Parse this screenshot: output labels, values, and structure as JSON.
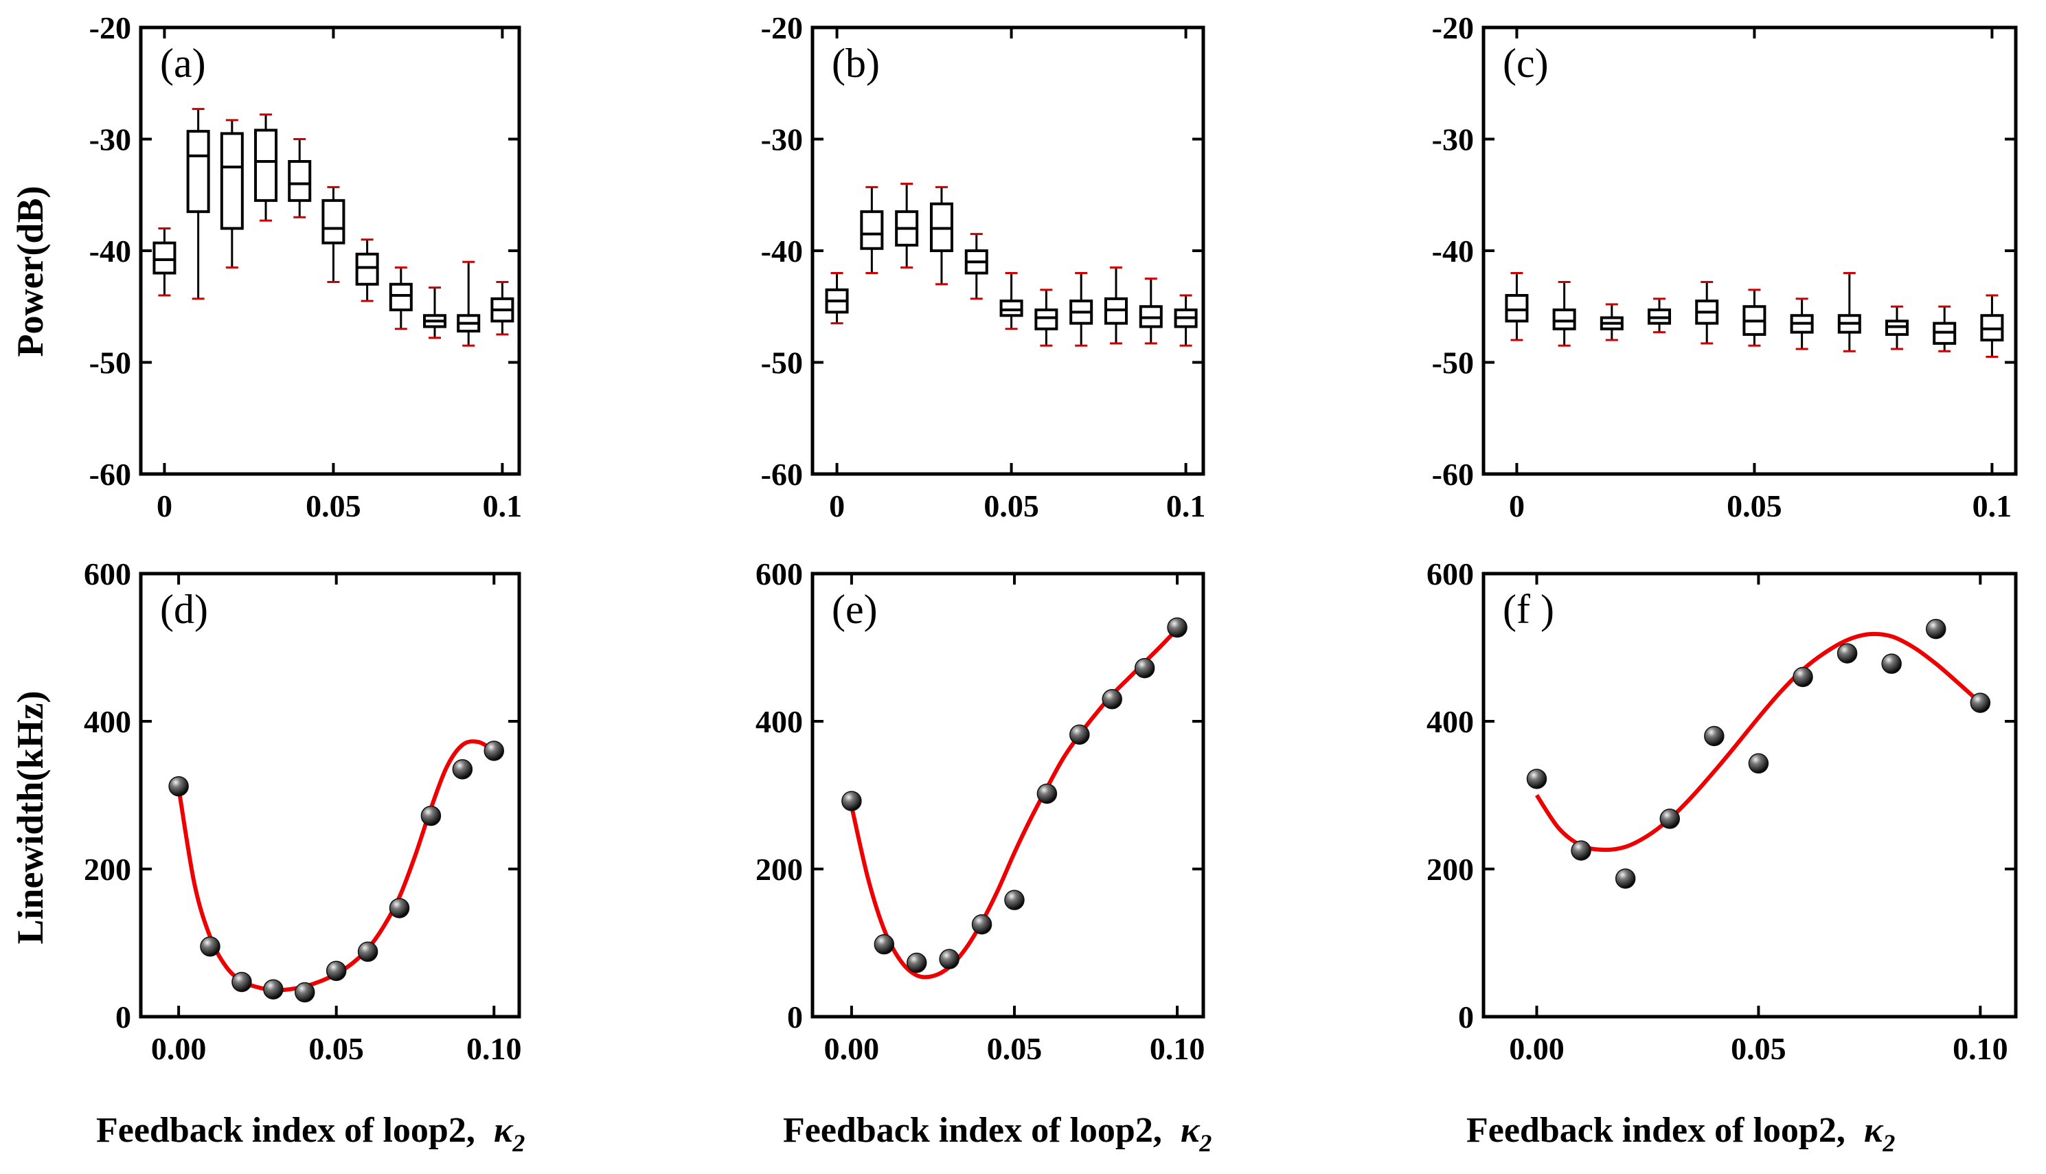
{
  "figure": {
    "y_label_top": "Power(dB)",
    "y_label_bottom": "Linewidth(kHz)",
    "x_label_text": "Feedback index of loop2,",
    "x_label_symbol": "κ",
    "x_label_sub": "2",
    "colors": {
      "axis": "#000000",
      "whisker_cap": "#cc0000",
      "fit_curve": "#ee0000",
      "marker": "#111111"
    }
  },
  "chart_data": [
    {
      "panel": "(a)",
      "type": "box",
      "xlim": [
        -0.007,
        0.105
      ],
      "ylim": [
        -60,
        -20
      ],
      "yticks": [
        "-20",
        "-30",
        "-40",
        "-50",
        "-60"
      ],
      "ytick_values": [
        -20,
        -30,
        -40,
        -50,
        -60
      ],
      "xticks": [
        "0",
        "0.05",
        "0.1"
      ],
      "xtick_values": [
        0,
        0.05,
        0.1
      ],
      "boxes": [
        {
          "x": 0.0,
          "min": -44.0,
          "q1": -42.0,
          "median": -40.8,
          "q3": -39.3,
          "max": -38.0
        },
        {
          "x": 0.01,
          "min": -44.3,
          "q1": -36.5,
          "median": -31.5,
          "q3": -29.3,
          "max": -27.3
        },
        {
          "x": 0.02,
          "min": -41.5,
          "q1": -38.0,
          "median": -32.5,
          "q3": -29.5,
          "max": -28.3
        },
        {
          "x": 0.03,
          "min": -37.3,
          "q1": -35.5,
          "median": -32.0,
          "q3": -29.2,
          "max": -27.8
        },
        {
          "x": 0.04,
          "min": -37.0,
          "q1": -35.5,
          "median": -34.0,
          "q3": -32.0,
          "max": -30.0
        },
        {
          "x": 0.05,
          "min": -42.8,
          "q1": -39.3,
          "median": -38.0,
          "q3": -35.5,
          "max": -34.3
        },
        {
          "x": 0.06,
          "min": -44.5,
          "q1": -43.0,
          "median": -41.5,
          "q3": -40.3,
          "max": -39.0
        },
        {
          "x": 0.07,
          "min": -47.0,
          "q1": -45.3,
          "median": -44.0,
          "q3": -43.0,
          "max": -41.5
        },
        {
          "x": 0.08,
          "min": -47.8,
          "q1": -46.8,
          "median": -46.3,
          "q3": -45.8,
          "max": -43.3
        },
        {
          "x": 0.09,
          "min": -48.5,
          "q1": -47.2,
          "median": -46.5,
          "q3": -45.8,
          "max": -41.0
        },
        {
          "x": 0.1,
          "min": -47.5,
          "q1": -46.3,
          "median": -45.3,
          "q3": -44.3,
          "max": -42.8
        }
      ]
    },
    {
      "panel": "(b)",
      "type": "box",
      "xlim": [
        -0.007,
        0.105
      ],
      "ylim": [
        -60,
        -20
      ],
      "yticks": [
        "-20",
        "-30",
        "-40",
        "-50",
        "-60"
      ],
      "ytick_values": [
        -20,
        -30,
        -40,
        -50,
        -60
      ],
      "xticks": [
        "0",
        "0.05",
        "0.1"
      ],
      "xtick_values": [
        0,
        0.05,
        0.1
      ],
      "boxes": [
        {
          "x": 0.0,
          "min": -46.5,
          "q1": -45.5,
          "median": -44.5,
          "q3": -43.5,
          "max": -42.0
        },
        {
          "x": 0.01,
          "min": -42.0,
          "q1": -39.8,
          "median": -38.5,
          "q3": -36.5,
          "max": -34.3
        },
        {
          "x": 0.02,
          "min": -41.5,
          "q1": -39.5,
          "median": -38.0,
          "q3": -36.5,
          "max": -34.0
        },
        {
          "x": 0.03,
          "min": -43.0,
          "q1": -40.0,
          "median": -38.0,
          "q3": -35.8,
          "max": -34.3
        },
        {
          "x": 0.04,
          "min": -44.3,
          "q1": -42.0,
          "median": -41.0,
          "q3": -40.0,
          "max": -38.5
        },
        {
          "x": 0.05,
          "min": -47.0,
          "q1": -45.8,
          "median": -45.3,
          "q3": -44.5,
          "max": -42.0
        },
        {
          "x": 0.06,
          "min": -48.5,
          "q1": -47.0,
          "median": -46.0,
          "q3": -45.3,
          "max": -43.5
        },
        {
          "x": 0.07,
          "min": -48.5,
          "q1": -46.5,
          "median": -45.5,
          "q3": -44.5,
          "max": -42.0
        },
        {
          "x": 0.08,
          "min": -48.3,
          "q1": -46.5,
          "median": -45.3,
          "q3": -44.3,
          "max": -41.5
        },
        {
          "x": 0.09,
          "min": -48.3,
          "q1": -46.8,
          "median": -46.0,
          "q3": -45.0,
          "max": -42.5
        },
        {
          "x": 0.1,
          "min": -48.5,
          "q1": -46.8,
          "median": -46.0,
          "q3": -45.3,
          "max": -44.0
        }
      ]
    },
    {
      "panel": "(c)",
      "type": "box",
      "xlim": [
        -0.007,
        0.105
      ],
      "ylim": [
        -60,
        -20
      ],
      "yticks": [
        "-20",
        "-30",
        "-40",
        "-50",
        "-60"
      ],
      "ytick_values": [
        -20,
        -30,
        -40,
        -50,
        -60
      ],
      "xticks": [
        "0",
        "0.05",
        "0.1"
      ],
      "xtick_values": [
        0,
        0.05,
        0.1
      ],
      "boxes": [
        {
          "x": 0.0,
          "min": -48.0,
          "q1": -46.3,
          "median": -45.3,
          "q3": -44.0,
          "max": -42.0
        },
        {
          "x": 0.01,
          "min": -48.5,
          "q1": -47.0,
          "median": -46.3,
          "q3": -45.3,
          "max": -42.8
        },
        {
          "x": 0.02,
          "min": -48.0,
          "q1": -47.0,
          "median": -46.5,
          "q3": -46.0,
          "max": -44.8
        },
        {
          "x": 0.03,
          "min": -47.3,
          "q1": -46.5,
          "median": -46.0,
          "q3": -45.3,
          "max": -44.3
        },
        {
          "x": 0.04,
          "min": -48.3,
          "q1": -46.5,
          "median": -45.5,
          "q3": -44.5,
          "max": -42.8
        },
        {
          "x": 0.05,
          "min": -48.5,
          "q1": -47.5,
          "median": -46.3,
          "q3": -45.0,
          "max": -43.5
        },
        {
          "x": 0.06,
          "min": -48.8,
          "q1": -47.3,
          "median": -46.5,
          "q3": -45.8,
          "max": -44.3
        },
        {
          "x": 0.07,
          "min": -49.0,
          "q1": -47.3,
          "median": -46.5,
          "q3": -45.8,
          "max": -42.0
        },
        {
          "x": 0.08,
          "min": -48.8,
          "q1": -47.5,
          "median": -46.8,
          "q3": -46.3,
          "max": -45.0
        },
        {
          "x": 0.09,
          "min": -49.0,
          "q1": -48.3,
          "median": -47.3,
          "q3": -46.5,
          "max": -45.0
        },
        {
          "x": 0.1,
          "min": -49.5,
          "q1": -48.0,
          "median": -47.0,
          "q3": -45.8,
          "max": -44.0
        }
      ]
    },
    {
      "panel": "(d)",
      "type": "scatter",
      "xlim": [
        -0.012,
        0.108
      ],
      "ylim": [
        0,
        600
      ],
      "yticks": [
        "0",
        "200",
        "400",
        "600"
      ],
      "ytick_values": [
        0,
        200,
        400,
        600
      ],
      "xticks": [
        "0.00",
        "0.05",
        "0.10"
      ],
      "xtick_values": [
        0,
        0.05,
        0.1
      ],
      "x": [
        0.0,
        0.01,
        0.02,
        0.03,
        0.04,
        0.05,
        0.06,
        0.07,
        0.08,
        0.09,
        0.1
      ],
      "y": [
        312,
        95,
        47,
        37,
        33,
        62,
        88,
        147,
        272,
        335,
        360
      ],
      "fit": {
        "x": [
          0.0,
          0.005,
          0.01,
          0.015,
          0.02,
          0.025,
          0.03,
          0.035,
          0.04,
          0.045,
          0.05,
          0.055,
          0.06,
          0.065,
          0.07,
          0.075,
          0.08,
          0.085,
          0.09,
          0.095,
          0.1
        ],
        "y": [
          310,
          180,
          108,
          68,
          48,
          40,
          36,
          37,
          41,
          48,
          58,
          72,
          92,
          122,
          162,
          218,
          282,
          338,
          368,
          372,
          360
        ]
      }
    },
    {
      "panel": "(e)",
      "type": "scatter",
      "xlim": [
        -0.012,
        0.108
      ],
      "ylim": [
        0,
        600
      ],
      "yticks": [
        "0",
        "200",
        "400",
        "600"
      ],
      "ytick_values": [
        0,
        200,
        400,
        600
      ],
      "xticks": [
        "0.00",
        "0.05",
        "0.10"
      ],
      "xtick_values": [
        0,
        0.05,
        0.1
      ],
      "x": [
        0.0,
        0.01,
        0.02,
        0.03,
        0.04,
        0.05,
        0.06,
        0.07,
        0.08,
        0.09,
        0.1
      ],
      "y": [
        292,
        98,
        73,
        78,
        125,
        158,
        302,
        382,
        430,
        472,
        527
      ],
      "fit": {
        "x": [
          0.0,
          0.005,
          0.01,
          0.015,
          0.02,
          0.025,
          0.03,
          0.035,
          0.04,
          0.045,
          0.05,
          0.055,
          0.06,
          0.065,
          0.07,
          0.075,
          0.08,
          0.085,
          0.09,
          0.095,
          0.1
        ],
        "y": [
          285,
          188,
          118,
          76,
          56,
          55,
          67,
          92,
          128,
          172,
          222,
          268,
          310,
          350,
          382,
          410,
          436,
          458,
          480,
          502,
          525
        ]
      }
    },
    {
      "panel": "(f )",
      "type": "scatter",
      "xlim": [
        -0.012,
        0.108
      ],
      "ylim": [
        0,
        600
      ],
      "yticks": [
        "0",
        "200",
        "400",
        "600"
      ],
      "ytick_values": [
        0,
        200,
        400,
        600
      ],
      "xticks": [
        "0.00",
        "0.05",
        "0.10"
      ],
      "xtick_values": [
        0,
        0.05,
        0.1
      ],
      "x": [
        0.0,
        0.01,
        0.02,
        0.03,
        0.04,
        0.05,
        0.06,
        0.07,
        0.08,
        0.09,
        0.1
      ],
      "y": [
        322,
        225,
        187,
        268,
        380,
        343,
        460,
        492,
        478,
        525,
        425
      ],
      "fit": {
        "x": [
          0.0,
          0.005,
          0.01,
          0.015,
          0.02,
          0.025,
          0.03,
          0.035,
          0.04,
          0.045,
          0.05,
          0.055,
          0.06,
          0.065,
          0.07,
          0.075,
          0.08,
          0.085,
          0.09,
          0.095,
          0.1
        ],
        "y": [
          300,
          255,
          232,
          226,
          230,
          245,
          268,
          298,
          332,
          368,
          405,
          440,
          470,
          493,
          510,
          518,
          515,
          500,
          478,
          452,
          425
        ]
      }
    }
  ]
}
